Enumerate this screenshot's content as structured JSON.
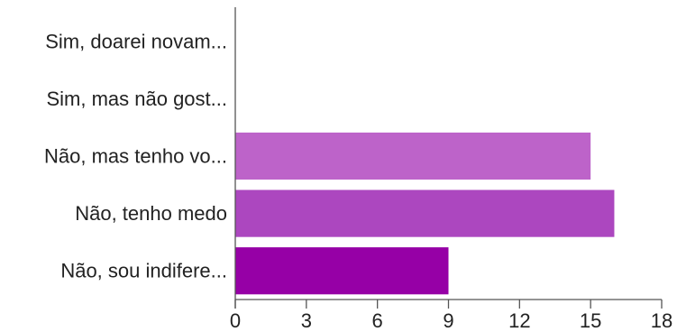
{
  "chart_data": {
    "type": "bar",
    "orientation": "horizontal",
    "title": "",
    "xlabel": "",
    "ylabel": "",
    "categories": [
      "Sim, doarei novam...",
      "Sim, mas não gost...",
      "Não, mas tenho vo...",
      "Não, tenho medo",
      "Não, sou indifere..."
    ],
    "values": [
      0,
      0,
      15,
      16,
      9
    ],
    "bar_colors": [
      "#dd9ce4",
      "#d07fd8",
      "#bd63c9",
      "#ac47bf",
      "#9600a6"
    ],
    "xlim": [
      0,
      18
    ],
    "x_ticks": [
      0,
      3,
      6,
      9,
      12,
      15,
      18
    ],
    "x_tick_labels": [
      "0",
      "3",
      "6",
      "9",
      "12",
      "15",
      "18"
    ],
    "grid": false,
    "legend": "none"
  }
}
